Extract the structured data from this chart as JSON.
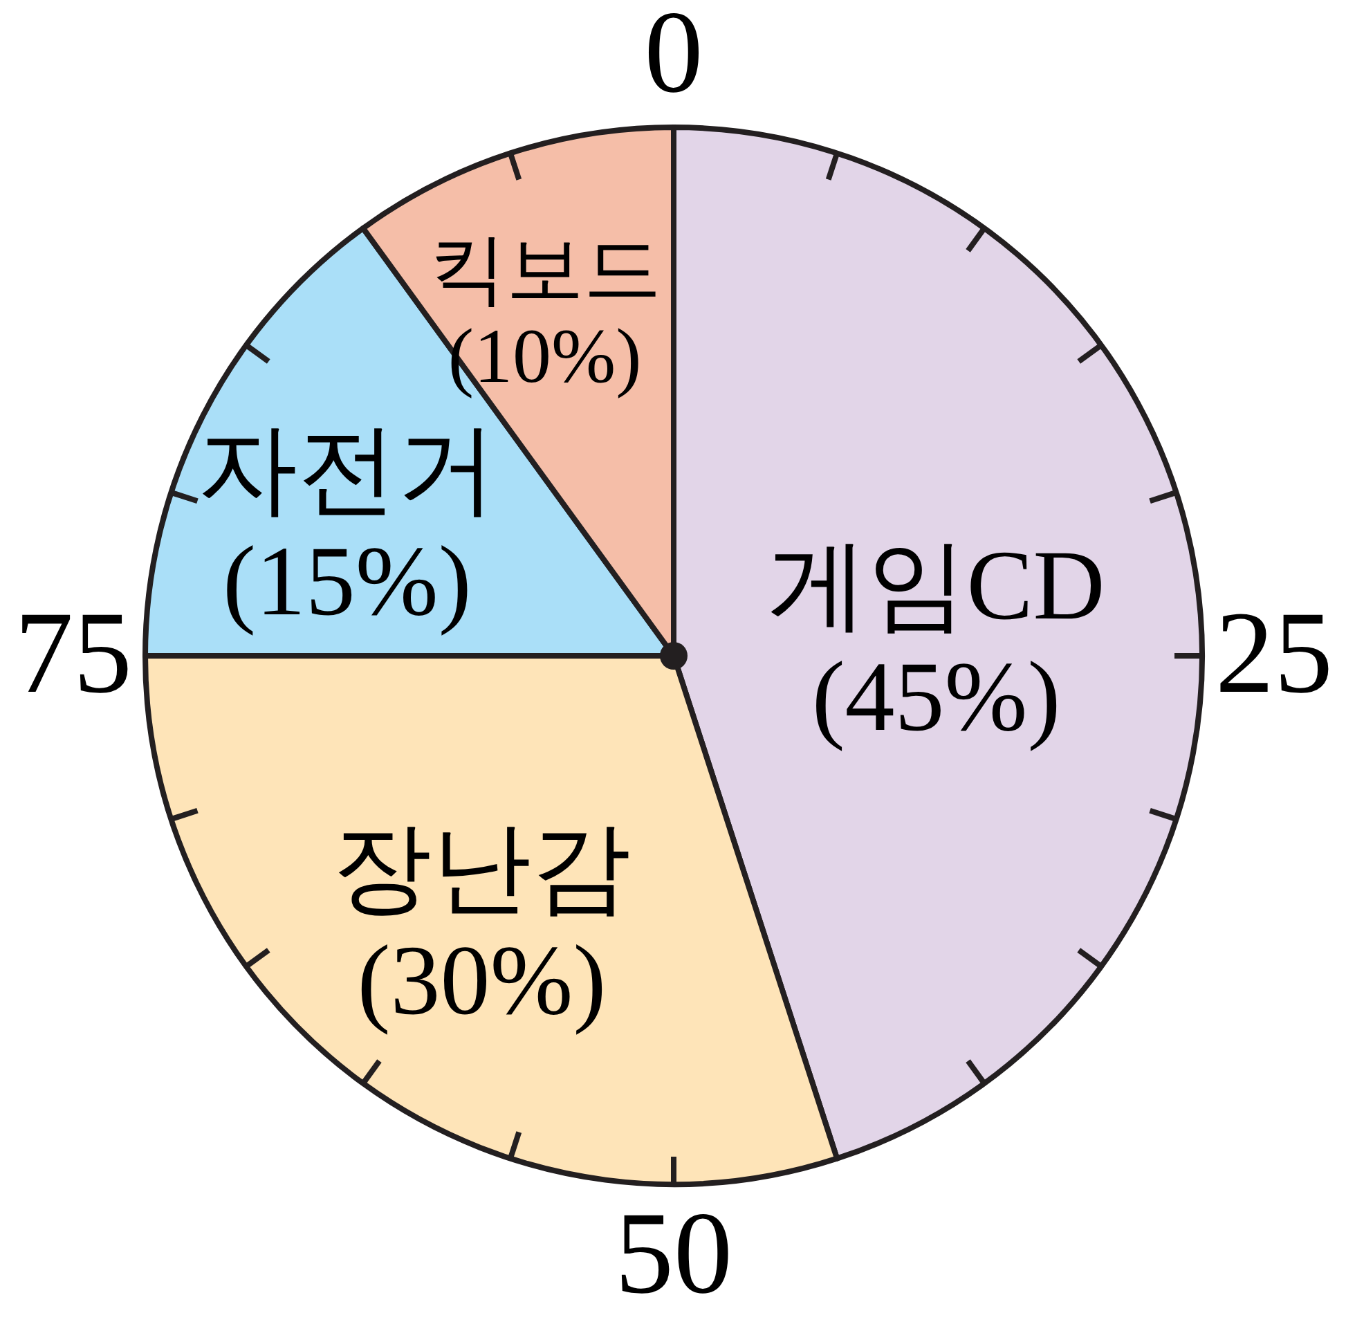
{
  "chart_data": {
    "type": "pie",
    "categories": [
      "게임CD",
      "장난감",
      "자전거",
      "킥보드"
    ],
    "values": [
      45,
      30,
      15,
      10
    ],
    "colors": [
      "#e2d5e8",
      "#fee4b8",
      "#aadff8",
      "#f5bea8"
    ],
    "value_labels": [
      "(45%)",
      "(30%)",
      "(15%)",
      "(10%)"
    ],
    "annotations": [
      "0",
      "25",
      "50",
      "75"
    ]
  }
}
